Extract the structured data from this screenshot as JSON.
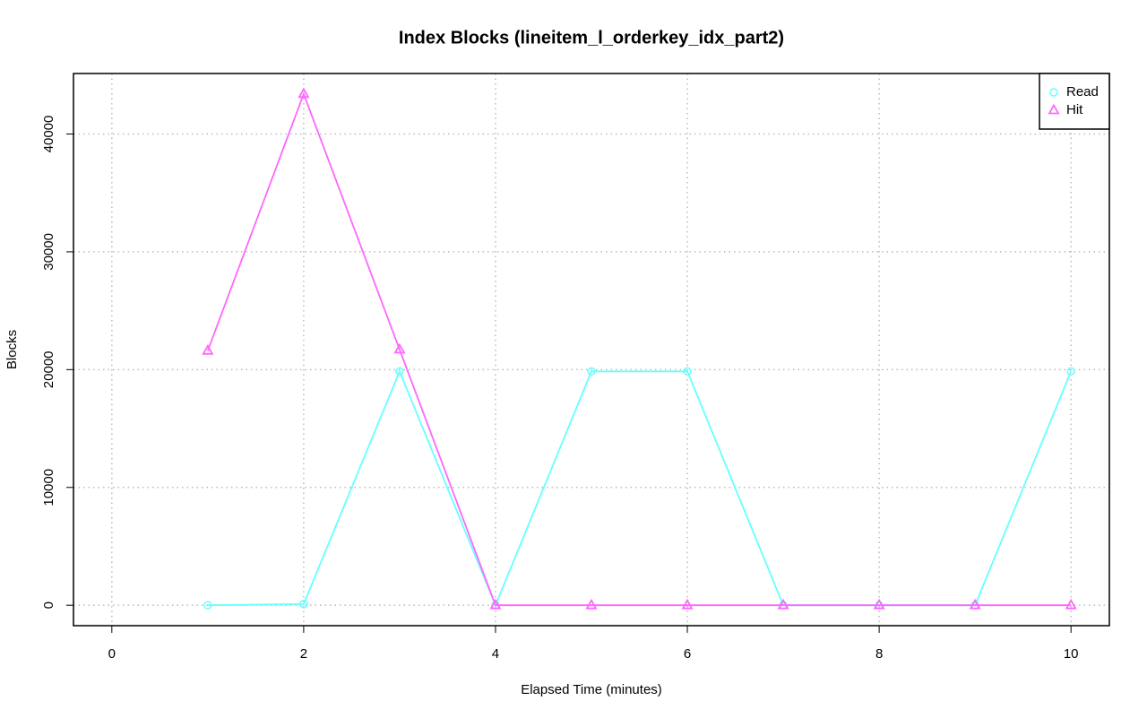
{
  "chart_data": {
    "type": "line",
    "title": "Index Blocks (lineitem_l_orderkey_idx_part2)",
    "x_label": "Elapsed Time (minutes)",
    "y_label": "Blocks",
    "x": [
      1,
      2,
      3,
      4,
      5,
      6,
      7,
      8,
      9,
      10
    ],
    "series": [
      {
        "name": "Read",
        "color": "#66ffff",
        "marker": "circle",
        "values": [
          0,
          100,
          19850,
          0,
          19850,
          19850,
          0,
          0,
          0,
          19850
        ]
      },
      {
        "name": "Hit",
        "color": "#ff66ff",
        "marker": "triangle",
        "values": [
          21600,
          43400,
          21700,
          0,
          0,
          0,
          0,
          0,
          0,
          0
        ]
      }
    ],
    "xlim": [
      -0.4,
      10.4
    ],
    "xticks": [
      0,
      2,
      4,
      6,
      8,
      10
    ],
    "ylim": [
      -1736,
      45136
    ],
    "yticks": [
      0,
      10000,
      20000,
      30000,
      40000
    ],
    "grid": true,
    "legend": "top-right"
  }
}
